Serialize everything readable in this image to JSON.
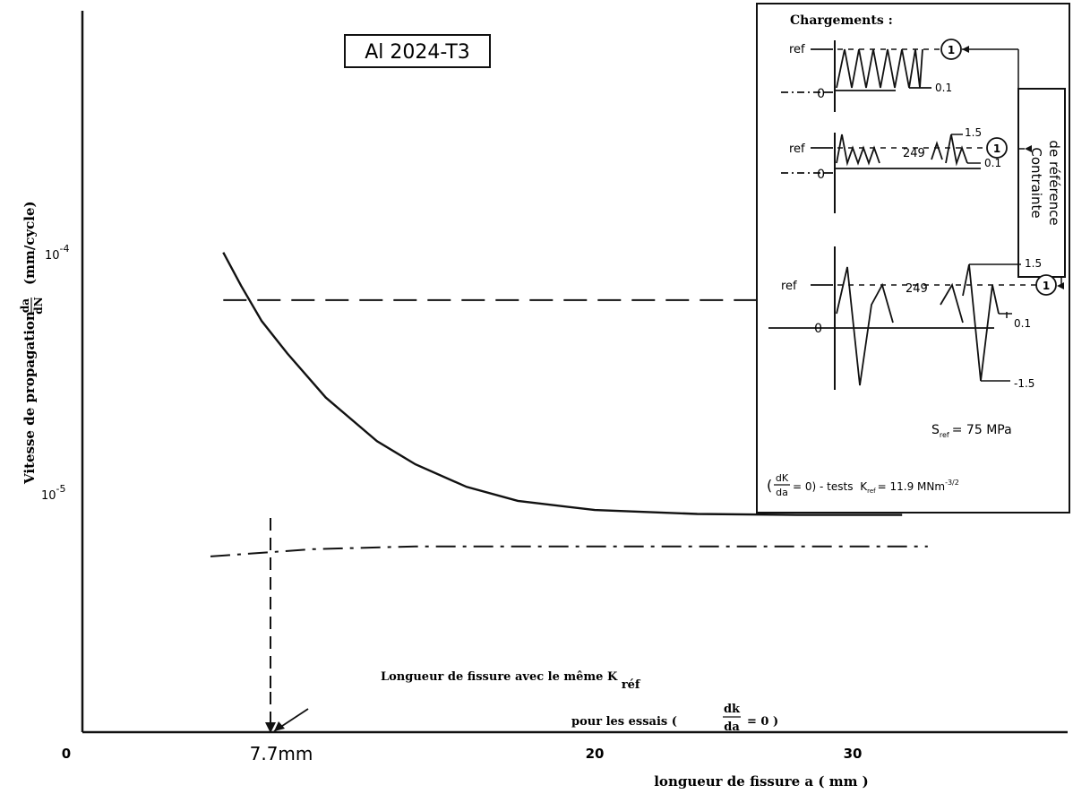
{
  "chart_data": {
    "type": "line",
    "title": "Al 2024-T3",
    "xlabel": "longueur de fissure a ( mm )",
    "ylabel_main": "Vitesse de propagation",
    "ylabel_frac_num": "da",
    "ylabel_frac_den": "dN",
    "ylabel_unit": "(mm/cycle)",
    "x_ticks": [
      {
        "value": 0,
        "label": "0"
      },
      {
        "value": 20,
        "label": "20"
      },
      {
        "value": 30,
        "label": "30"
      }
    ],
    "y_ticks": [
      {
        "value": 0.0001,
        "label": "10-4"
      },
      {
        "value": 1e-05,
        "label": "10-5"
      }
    ],
    "marked_x": {
      "value": 7.7,
      "label": "7.7mm"
    },
    "xlim": [
      0,
      38
    ],
    "ylim_log": [
      -5.5,
      -3.5
    ],
    "series": [
      {
        "style": "solid",
        "x": [
          5.5,
          6.2,
          7.0,
          8.0,
          9.5,
          11.5,
          13.0,
          15.0,
          17.0,
          20.0,
          24.0,
          28.0,
          32.0
        ],
        "y": [
          0.00013,
          9.4e-05,
          6.7e-05,
          4.9e-05,
          3.2e-05,
          2.1e-05,
          1.68e-05,
          1.35e-05,
          1.18e-05,
          1.08e-05,
          1.04e-05,
          1.03e-05,
          1.03e-05
        ]
      },
      {
        "style": "long-dash",
        "x": [
          5.5,
          33.0
        ],
        "y": [
          8.2e-05,
          8.2e-05
        ]
      },
      {
        "style": "dash-dot",
        "x": [
          5.0,
          9.0,
          13.0,
          20.0,
          33.0
        ],
        "y": [
          6.9e-06,
          7.4e-06,
          7.6e-06,
          7.6e-06,
          7.6e-06
        ]
      }
    ],
    "annotation_line1": "Longueur de fissure avec le même K",
    "annotation_line1_sub": "réf",
    "annotation_line2_pre": "pour les essais (",
    "annotation_frac_num": "dk",
    "annotation_frac_den": "da",
    "annotation_line2_post": "= 0 )"
  },
  "inset": {
    "title": "Chargements :",
    "side_label_1": "Contrainte",
    "side_label_2": "de référence",
    "ref": "ref",
    "zero": "0",
    "v_01": "0.1",
    "v_15": "1.5",
    "v_m15": "-1.5",
    "n_cycles": "249",
    "marker": "1",
    "s_ref_sym": "S",
    "s_ref_sub": "ref",
    "s_ref_val": "= 75 MPa",
    "cond_num": "dK",
    "cond_den": "da",
    "cond_text": "= 0) - tests",
    "k_sym": "K",
    "k_sub": "ref",
    "k_val": "= 11.9 MNm",
    "k_exp": "-3/2"
  }
}
